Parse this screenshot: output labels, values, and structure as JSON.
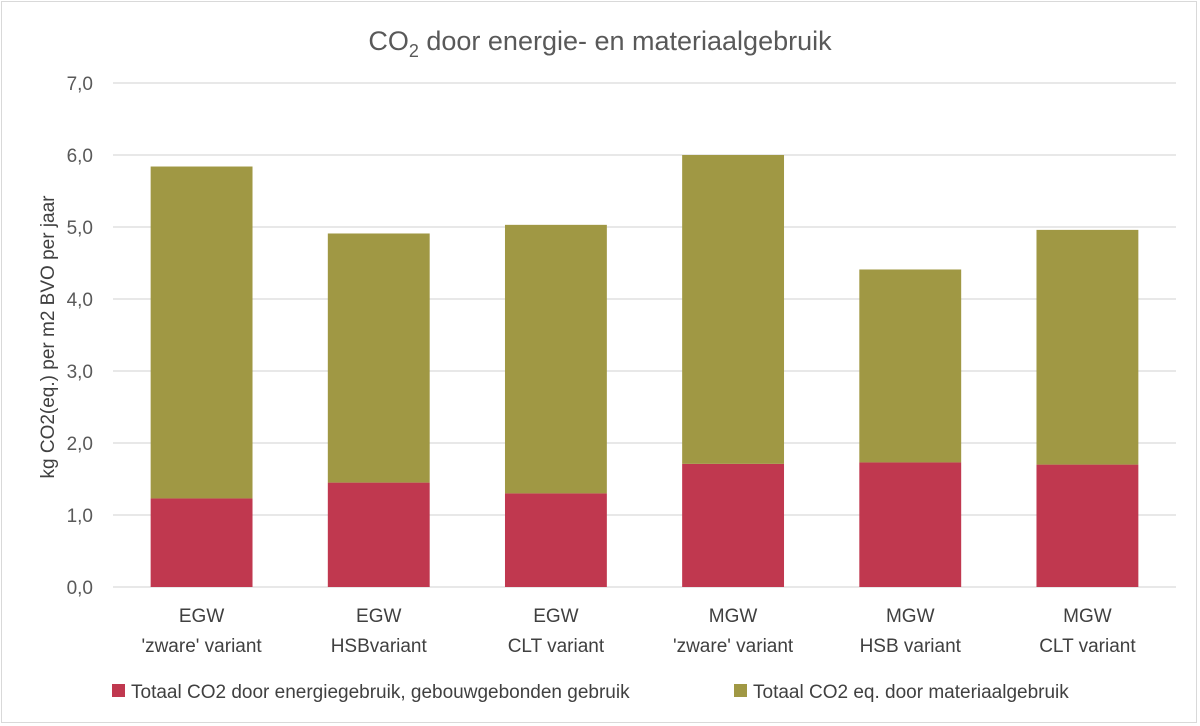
{
  "chart_data": {
    "type": "bar",
    "stacked": true,
    "title_main": "CO",
    "title_sub": "2",
    "title_rest": " door energie- en materiaalgebruik",
    "title": "CO2 door energie- en materiaalgebruik",
    "xlabel": "",
    "ylabel": "kg CO2(eq.) per m2 BVO per jaar",
    "ylim": [
      0,
      7
    ],
    "ytick_step": 1,
    "ytick_labels": [
      "0,0",
      "1,0",
      "2,0",
      "3,0",
      "4,0",
      "5,0",
      "6,0",
      "7,0"
    ],
    "grid": true,
    "legend_position": "bottom",
    "categories": [
      [
        "EGW",
        "'zware' variant"
      ],
      [
        "EGW",
        "HSBvariant"
      ],
      [
        "EGW",
        "CLT variant"
      ],
      [
        "MGW",
        "'zware' variant"
      ],
      [
        "MGW",
        "HSB variant"
      ],
      [
        "MGW",
        "CLT variant"
      ]
    ],
    "series": [
      {
        "name": "Totaal CO2 door energiegebruik,  gebouwgebonden gebruik",
        "color": "#c0384f",
        "values": [
          1.23,
          1.45,
          1.3,
          1.71,
          1.73,
          1.7
        ]
      },
      {
        "name": "Totaal CO2 eq. door materiaalgebruik",
        "color": "#a09844",
        "values": [
          4.61,
          3.46,
          3.73,
          4.29,
          2.68,
          3.26
        ]
      }
    ],
    "colors": {
      "grid": "#d9d9d9",
      "text": "#595959"
    }
  }
}
